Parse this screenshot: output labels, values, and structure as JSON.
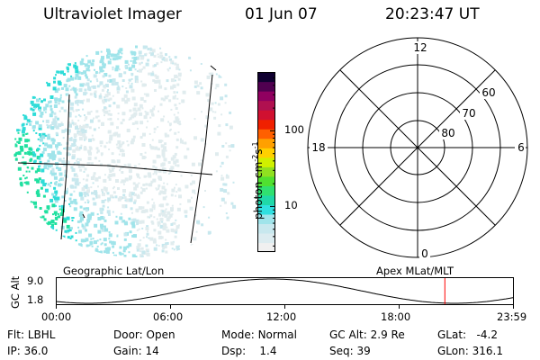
{
  "header": {
    "title": "Ultraviolet Imager",
    "date": "01 Jun 07",
    "time": "20:23:47 UT"
  },
  "colorbar": {
    "unit": "photon cm",
    "unit_sup1": "-2",
    "unit_mid": "s",
    "unit_sup2": "-1",
    "ticks": [
      "100",
      "10"
    ],
    "tick_values": [
      100,
      10
    ],
    "range": [
      2.5,
      600
    ],
    "colors": [
      "#f0f0f0",
      "#dcecf0",
      "#c8e8ee",
      "#a0e4ea",
      "#30e0e0",
      "#20d8a8",
      "#30e070",
      "#50e030",
      "#90e020",
      "#d0f000",
      "#ffd000",
      "#ffa000",
      "#ff6000",
      "#f02000",
      "#d01030",
      "#b01050",
      "#900060",
      "#500050",
      "#100030"
    ]
  },
  "polar_plot": {
    "labels": {
      "top": "12",
      "left": "18",
      "right": "6",
      "bottom": "0"
    },
    "rings": [
      "60",
      "70",
      "80"
    ]
  },
  "timeline": {
    "left_title": "Geographic Lat/Lon",
    "right_title": "Apex MLat/MLT",
    "y_axis_label": "GC Alt",
    "y_max": "9.0",
    "y_min": "1.8",
    "x_ticks": [
      "00:00",
      "06:00",
      "12:00",
      "18:00",
      "23:59"
    ],
    "marker_time_hours": 20.4,
    "marker_color": "#ff0000"
  },
  "footer": {
    "flt_label": "Flt:",
    "flt_value": "LBHL",
    "ip_label": "IP:",
    "ip_value": "36.0",
    "door_label": "Door:",
    "door_value": "Open",
    "gain_label": "Gain:",
    "gain_value": "14",
    "mode_label": "Mode:",
    "mode_value": "Normal",
    "dsp_label": "Dsp:",
    "dsp_value": "1.4",
    "gcalt_label": "GC Alt:",
    "gcalt_value": "2.9 Re",
    "seq_label": "Seq:",
    "seq_value": "39",
    "glat_label": "GLat:",
    "glat_value": "-4.2",
    "glon_label": "GLon:",
    "glon_value": "316.1"
  }
}
